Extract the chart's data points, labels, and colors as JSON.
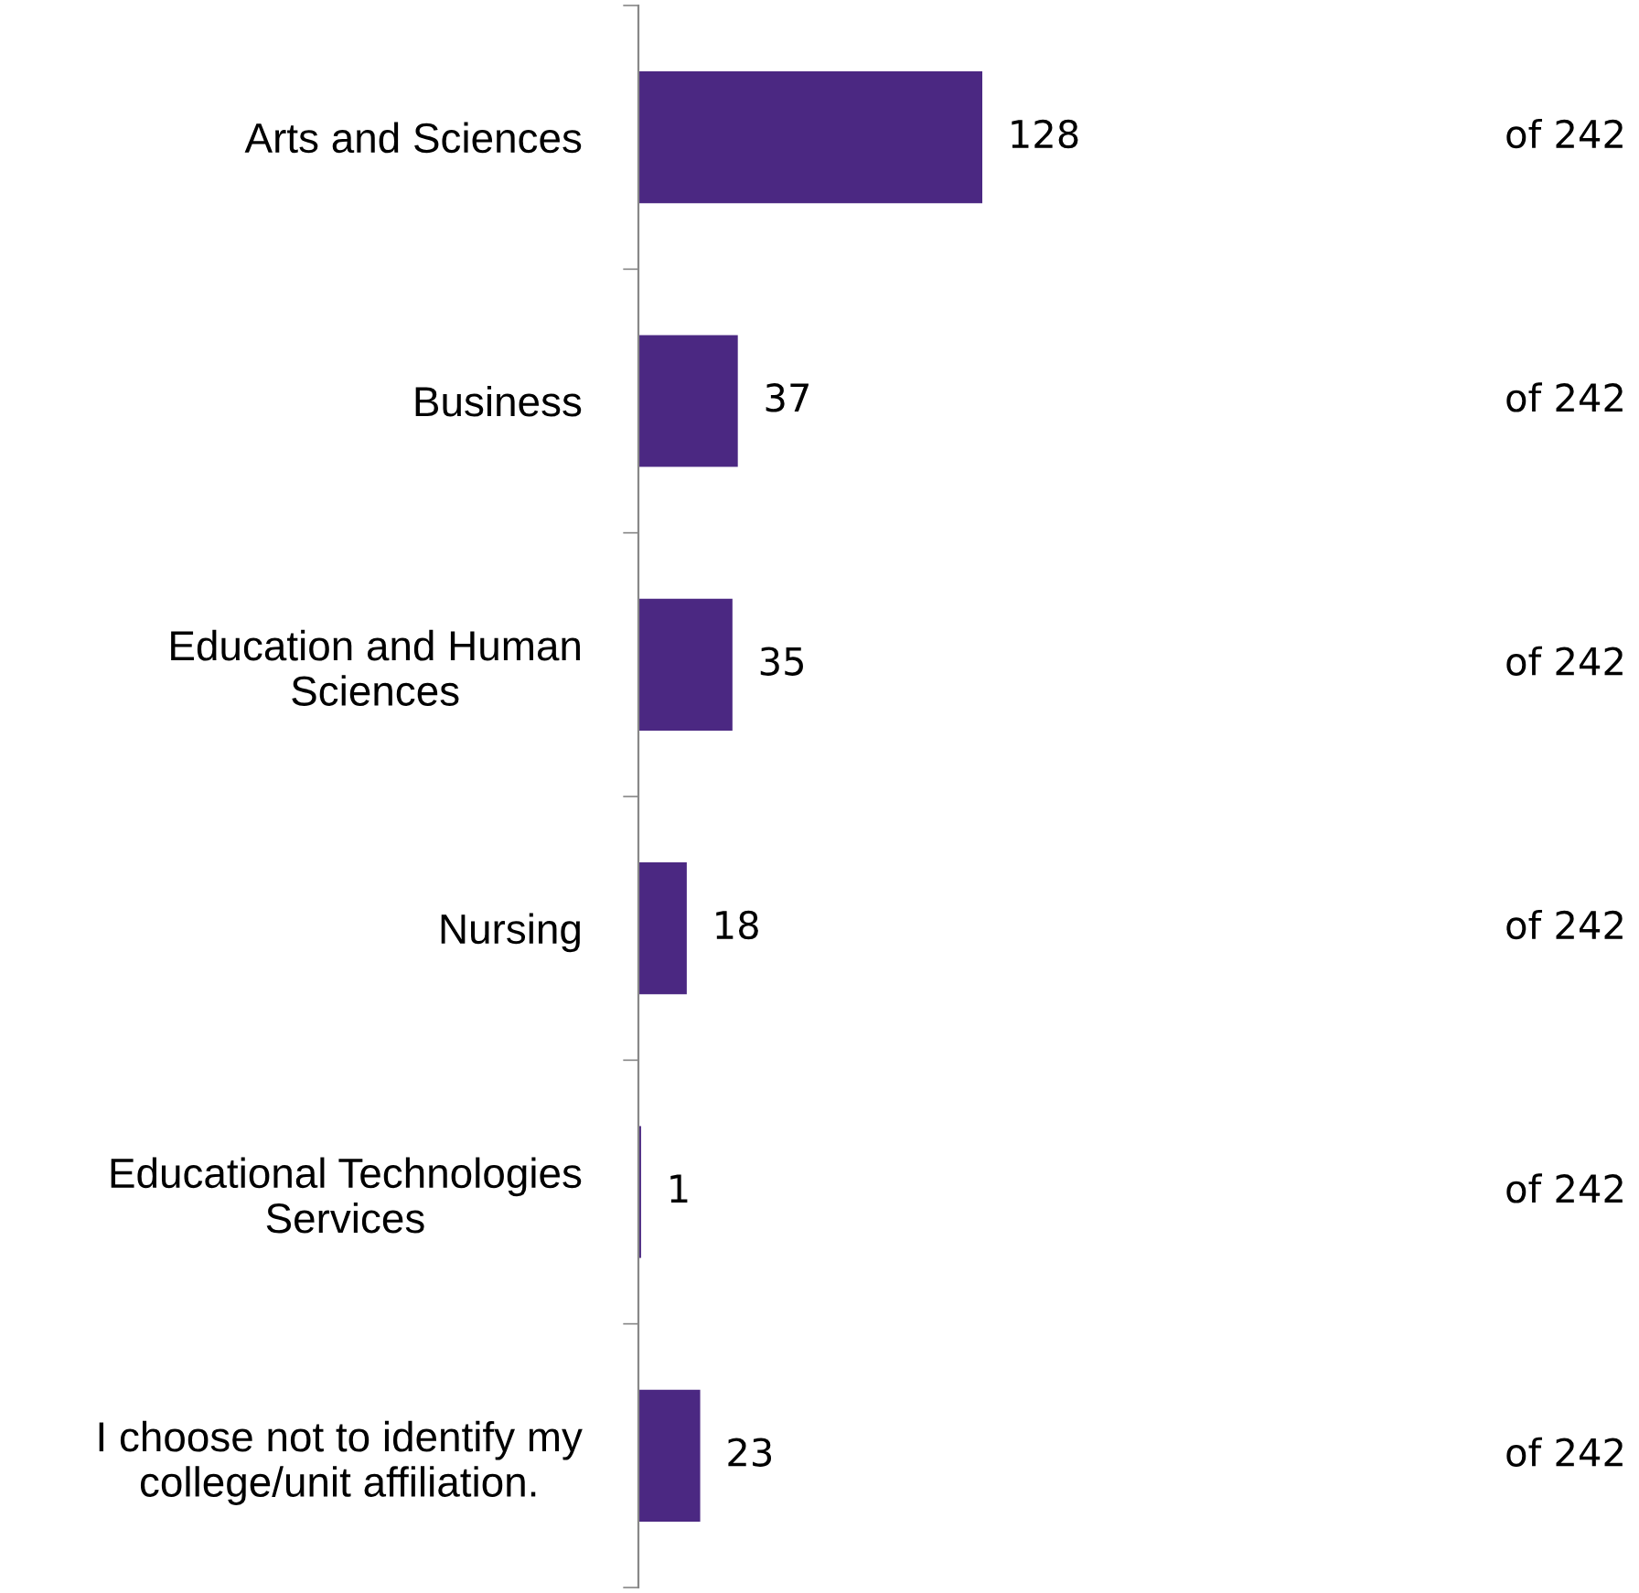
{
  "chart_data": {
    "type": "bar",
    "orientation": "horizontal",
    "categories": [
      "Arts and Sciences",
      "Business",
      "Education and Human\nSciences",
      "Nursing",
      "Educational Technologies\nServices",
      "I choose not to identify my\ncollege/unit affiliation."
    ],
    "values": [
      128,
      37,
      35,
      18,
      1,
      23
    ],
    "color": "#4b2882",
    "data_labels": true,
    "annotations": [
      "of 242",
      "of 242",
      "of 242",
      "of 242",
      "of 242",
      "of 242"
    ],
    "grid": false,
    "legend": false
  }
}
